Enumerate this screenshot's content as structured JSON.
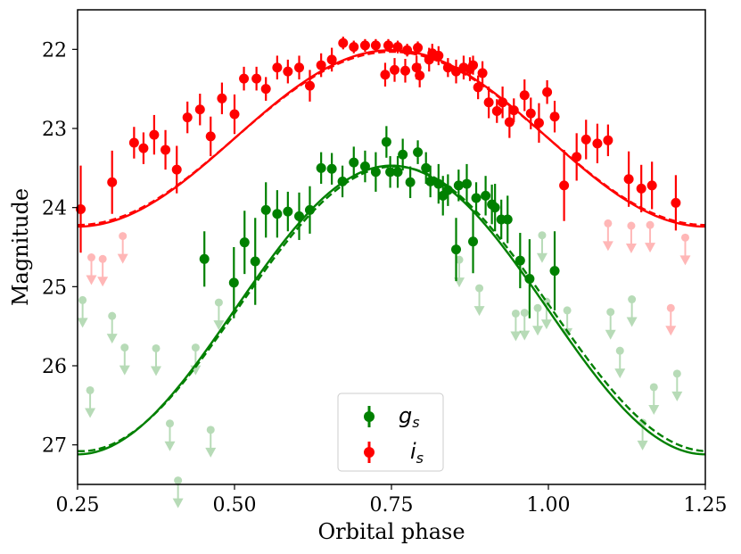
{
  "chart_data": {
    "type": "scatter",
    "xlabel": "Orbital phase",
    "ylabel": "Magnitude",
    "xlim": [
      0.25,
      1.25
    ],
    "ylim": [
      27.5,
      21.5
    ],
    "y_inverted": true,
    "xticks": [
      "0.25",
      "0.50",
      "0.75",
      "1.00",
      "1.25"
    ],
    "xtick_values": [
      0.25,
      0.5,
      0.75,
      1.0,
      1.25
    ],
    "yticks": [
      "22",
      "23",
      "24",
      "25",
      "26",
      "27"
    ],
    "ytick_values": [
      22,
      23,
      24,
      25,
      26,
      27
    ],
    "legend": {
      "position": "lower-center",
      "entries": [
        {
          "name": "g",
          "sub": "s",
          "color": "#008000"
        },
        {
          "name": "i",
          "sub": "s",
          "color": "#ff0000"
        }
      ]
    },
    "series": [
      {
        "name": "i_s",
        "color": "#ff0000",
        "detections": [
          [
            0.255,
            24.02,
            0.55
          ],
          [
            0.305,
            23.68,
            0.4
          ],
          [
            0.34,
            23.18,
            0.2
          ],
          [
            0.355,
            23.25,
            0.2
          ],
          [
            0.372,
            23.08,
            0.25
          ],
          [
            0.39,
            23.27,
            0.25
          ],
          [
            0.408,
            23.52,
            0.3
          ],
          [
            0.425,
            22.86,
            0.2
          ],
          [
            0.445,
            22.76,
            0.2
          ],
          [
            0.462,
            23.1,
            0.25
          ],
          [
            0.48,
            22.62,
            0.2
          ],
          [
            0.5,
            22.82,
            0.25
          ],
          [
            0.515,
            22.37,
            0.15
          ],
          [
            0.535,
            22.37,
            0.15
          ],
          [
            0.55,
            22.5,
            0.15
          ],
          [
            0.568,
            22.23,
            0.15
          ],
          [
            0.585,
            22.28,
            0.15
          ],
          [
            0.603,
            22.23,
            0.15
          ],
          [
            0.62,
            22.46,
            0.2
          ],
          [
            0.638,
            22.2,
            0.15
          ],
          [
            0.655,
            22.13,
            0.15
          ],
          [
            0.673,
            21.92,
            0.08
          ],
          [
            0.69,
            21.97,
            0.08
          ],
          [
            0.708,
            21.95,
            0.08
          ],
          [
            0.725,
            21.95,
            0.08
          ],
          [
            0.745,
            21.95,
            0.08
          ],
          [
            0.76,
            21.97,
            0.08
          ],
          [
            0.775,
            22.01,
            0.08
          ],
          [
            0.792,
            21.98,
            0.08
          ],
          [
            0.74,
            22.32,
            0.15
          ],
          [
            0.755,
            22.26,
            0.15
          ],
          [
            0.772,
            22.27,
            0.15
          ],
          [
            0.79,
            22.23,
            0.15
          ],
          [
            0.795,
            22.33,
            0.15
          ],
          [
            0.81,
            22.13,
            0.15
          ],
          [
            0.815,
            22.05,
            0.12
          ],
          [
            0.825,
            22.08,
            0.12
          ],
          [
            0.84,
            22.23,
            0.12
          ],
          [
            0.853,
            22.28,
            0.15
          ],
          [
            0.865,
            22.23,
            0.15
          ],
          [
            0.875,
            22.25,
            0.15
          ],
          [
            0.88,
            22.2,
            0.12
          ],
          [
            0.888,
            22.48,
            0.15
          ],
          [
            0.895,
            22.3,
            0.15
          ],
          [
            0.905,
            22.67,
            0.2
          ],
          [
            0.918,
            22.78,
            0.15
          ],
          [
            0.927,
            22.67,
            0.2
          ],
          [
            0.938,
            22.92,
            0.2
          ],
          [
            0.945,
            22.77,
            0.15
          ],
          [
            0.962,
            22.58,
            0.2
          ],
          [
            0.972,
            22.81,
            0.2
          ],
          [
            0.985,
            22.93,
            0.25
          ],
          [
            0.998,
            22.54,
            0.15
          ],
          [
            1.01,
            22.85,
            0.2
          ],
          [
            1.025,
            23.72,
            0.45
          ],
          [
            1.045,
            23.36,
            0.3
          ],
          [
            1.06,
            23.14,
            0.25
          ],
          [
            1.078,
            23.19,
            0.25
          ],
          [
            1.095,
            23.15,
            0.2
          ],
          [
            1.128,
            23.64,
            0.35
          ],
          [
            1.148,
            23.76,
            0.3
          ],
          [
            1.165,
            23.72,
            0.3
          ],
          [
            1.203,
            23.94,
            0.35
          ]
        ],
        "upper_limits": [
          [
            0.272,
            24.63
          ],
          [
            0.29,
            24.65
          ],
          [
            0.322,
            24.36
          ],
          [
            1.095,
            24.2
          ],
          [
            1.132,
            24.23
          ],
          [
            1.162,
            24.22
          ],
          [
            1.195,
            25.27
          ],
          [
            1.218,
            24.38
          ]
        ],
        "model_solid": {
          "mean": 23.125,
          "amplitude": 1.115,
          "min_phase": 0.25
        },
        "model_dashed": {
          "mean": 23.125,
          "amplitude": 1.095,
          "min_phase": 0.25
        }
      },
      {
        "name": "g_s",
        "color": "#008000",
        "detections": [
          [
            0.452,
            24.65,
            0.35
          ],
          [
            0.499,
            24.95,
            0.45
          ],
          [
            0.516,
            24.44,
            0.4
          ],
          [
            0.533,
            24.68,
            0.55
          ],
          [
            0.55,
            24.03,
            0.35
          ],
          [
            0.568,
            24.08,
            0.3
          ],
          [
            0.585,
            24.05,
            0.25
          ],
          [
            0.603,
            24.11,
            0.3
          ],
          [
            0.62,
            24.03,
            0.3
          ],
          [
            0.638,
            23.5,
            0.2
          ],
          [
            0.655,
            23.51,
            0.2
          ],
          [
            0.672,
            23.67,
            0.2
          ],
          [
            0.69,
            23.43,
            0.2
          ],
          [
            0.708,
            23.48,
            0.2
          ],
          [
            0.725,
            23.55,
            0.25
          ],
          [
            0.742,
            23.17,
            0.2
          ],
          [
            0.748,
            23.55,
            0.2
          ],
          [
            0.76,
            23.55,
            0.2
          ],
          [
            0.768,
            23.33,
            0.2
          ],
          [
            0.78,
            23.68,
            0.2
          ],
          [
            0.792,
            23.3,
            0.15
          ],
          [
            0.805,
            23.5,
            0.2
          ],
          [
            0.812,
            23.67,
            0.2
          ],
          [
            0.825,
            23.7,
            0.25
          ],
          [
            0.832,
            23.85,
            0.25
          ],
          [
            0.84,
            23.78,
            0.2
          ],
          [
            0.853,
            24.53,
            0.4
          ],
          [
            0.857,
            23.72,
            0.2
          ],
          [
            0.87,
            23.7,
            0.25
          ],
          [
            0.88,
            24.43,
            0.4
          ],
          [
            0.885,
            23.88,
            0.2
          ],
          [
            0.9,
            23.85,
            0.25
          ],
          [
            0.91,
            23.96,
            0.25
          ],
          [
            0.915,
            24.0,
            0.3
          ],
          [
            0.925,
            24.15,
            0.25
          ],
          [
            0.935,
            24.15,
            0.3
          ],
          [
            0.955,
            24.67,
            0.35
          ],
          [
            0.97,
            24.9,
            0.5
          ],
          [
            1.01,
            24.8,
            0.5
          ]
        ],
        "upper_limits": [
          [
            0.258,
            25.17
          ],
          [
            0.27,
            26.31
          ],
          [
            0.305,
            25.37
          ],
          [
            0.325,
            25.77
          ],
          [
            0.375,
            25.78
          ],
          [
            0.397,
            26.73
          ],
          [
            0.41,
            27.45
          ],
          [
            0.438,
            25.77
          ],
          [
            0.462,
            26.81
          ],
          [
            0.475,
            25.2
          ],
          [
            0.858,
            24.66
          ],
          [
            0.89,
            25.02
          ],
          [
            0.948,
            25.34
          ],
          [
            0.962,
            25.33
          ],
          [
            0.983,
            25.27
          ],
          [
            0.99,
            24.35
          ],
          [
            0.997,
            25.19
          ],
          [
            1.03,
            25.3
          ],
          [
            1.099,
            25.32
          ],
          [
            1.114,
            25.81
          ],
          [
            1.133,
            25.16
          ],
          [
            1.15,
            26.72
          ],
          [
            1.168,
            26.27
          ],
          [
            1.205,
            26.1
          ]
        ],
        "model_solid": {
          "mean": 25.295,
          "amplitude": 1.825,
          "min_phase": 0.25
        },
        "model_dashed": {
          "mean": 25.28,
          "amplitude": 1.8,
          "min_phase": 0.255
        }
      }
    ]
  }
}
